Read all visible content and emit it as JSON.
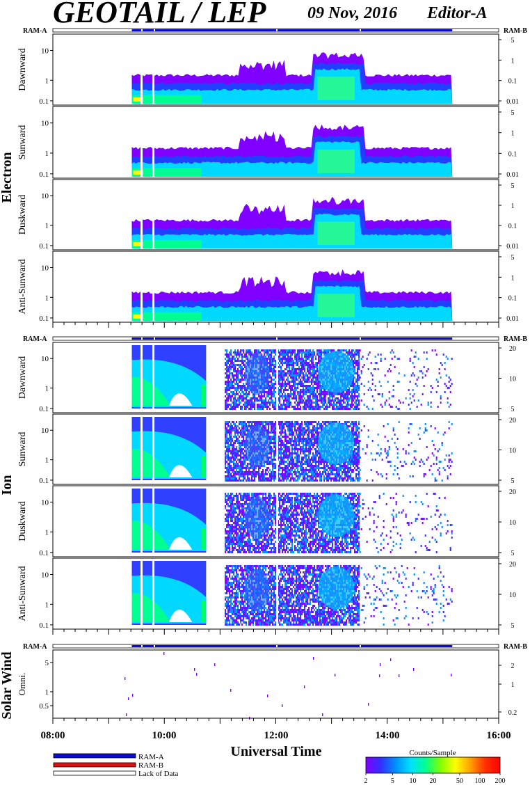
{
  "header": {
    "title": "GEOTAIL / LEP",
    "date": "09 Nov, 2016",
    "editor": "Editor-A"
  },
  "ram_labels": {
    "left": "RAM-A",
    "right": "RAM-B"
  },
  "groups": [
    {
      "label": "Electron",
      "panels": [
        "Dawnward",
        "Sunward",
        "Duskward",
        "Anti-Sunward"
      ]
    },
    {
      "label": "Ion",
      "panels": [
        "Dawnward",
        "Sunward",
        "Duskward",
        "Anti-Sunward"
      ]
    },
    {
      "label": "Solar Wind",
      "panels": [
        "Omni."
      ]
    }
  ],
  "x_axis": {
    "title": "Universal Time",
    "ticks": [
      "08:00",
      "10:00",
      "12:00",
      "14:00",
      "16:00"
    ]
  },
  "legend": {
    "items": [
      {
        "label": "RAM-A",
        "color": "#0a0ad2"
      },
      {
        "label": "RAM-B",
        "color": "#dd1111"
      },
      {
        "label": "Lack of Data",
        "color": "#ffffff"
      }
    ]
  },
  "colorbar": {
    "title": "Counts/Sample",
    "ticks": [
      "2",
      "5",
      "10",
      "20",
      "50",
      "100",
      "200"
    ],
    "colors": [
      "#8000ff",
      "#3030ff",
      "#0090ff",
      "#00e0ff",
      "#00ff90",
      "#80ff00",
      "#ffff00",
      "#ffa000",
      "#ff3000",
      "#ff0000"
    ]
  },
  "chart_data": [
    {
      "type": "heatmap",
      "group": "Electron",
      "x_range": [
        "08:00",
        "16:00"
      ],
      "data_coverage": [
        "09:25",
        "15:10"
      ],
      "ram_bar": "RAM-A",
      "panels": [
        {
          "name": "Dawnward",
          "left_ticks": [
            "10",
            "1",
            "0.1"
          ],
          "right_ticks": [
            "5",
            "1",
            "0.1",
            "0.01"
          ]
        },
        {
          "name": "Sunward",
          "left_ticks": [
            "10",
            "1",
            "0.1"
          ],
          "right_ticks": [
            "5",
            "1",
            "0.1",
            "0.01"
          ]
        },
        {
          "name": "Duskward",
          "left_ticks": [
            "10",
            "1",
            "0.1"
          ],
          "right_ticks": [
            "5",
            "1",
            "0.1",
            "0.01"
          ]
        },
        {
          "name": "Anti-Sunward",
          "left_ticks": [
            "10",
            "1",
            "0.1"
          ],
          "right_ticks": [
            "5",
            "1",
            "0.1",
            "0.01"
          ]
        }
      ],
      "enhancement_intervals": [
        [
          "11:50",
          "12:05"
        ],
        [
          "12:40",
          "13:35"
        ]
      ]
    },
    {
      "type": "heatmap",
      "group": "Ion",
      "x_range": [
        "08:00",
        "16:00"
      ],
      "data_coverage": [
        "09:25",
        "15:10"
      ],
      "ram_bar": "RAM-A",
      "panels": [
        {
          "name": "Dawnward",
          "left_ticks": [
            "10",
            "1",
            "0.1"
          ],
          "right_ticks": [
            "20",
            "10",
            "5"
          ]
        },
        {
          "name": "Sunward",
          "left_ticks": [
            "10",
            "1",
            "0.1"
          ],
          "right_ticks": [
            "20",
            "10",
            "5"
          ]
        },
        {
          "name": "Duskward",
          "left_ticks": [
            "10",
            "1",
            "0.1"
          ],
          "right_ticks": [
            "20",
            "10",
            "5"
          ]
        },
        {
          "name": "Anti-Sunward",
          "left_ticks": [
            "10",
            "1",
            "0.1"
          ],
          "right_ticks": [
            "20",
            "10",
            "5"
          ]
        }
      ]
    },
    {
      "type": "scatter",
      "group": "Solar Wind",
      "panel": "Omni.",
      "x_range": [
        "08:00",
        "16:00"
      ],
      "left_ticks": [
        "5",
        "1",
        "0.5"
      ],
      "right_ticks": [
        "2",
        "1",
        "0.2"
      ],
      "ram_bar": "RAM-A"
    }
  ]
}
